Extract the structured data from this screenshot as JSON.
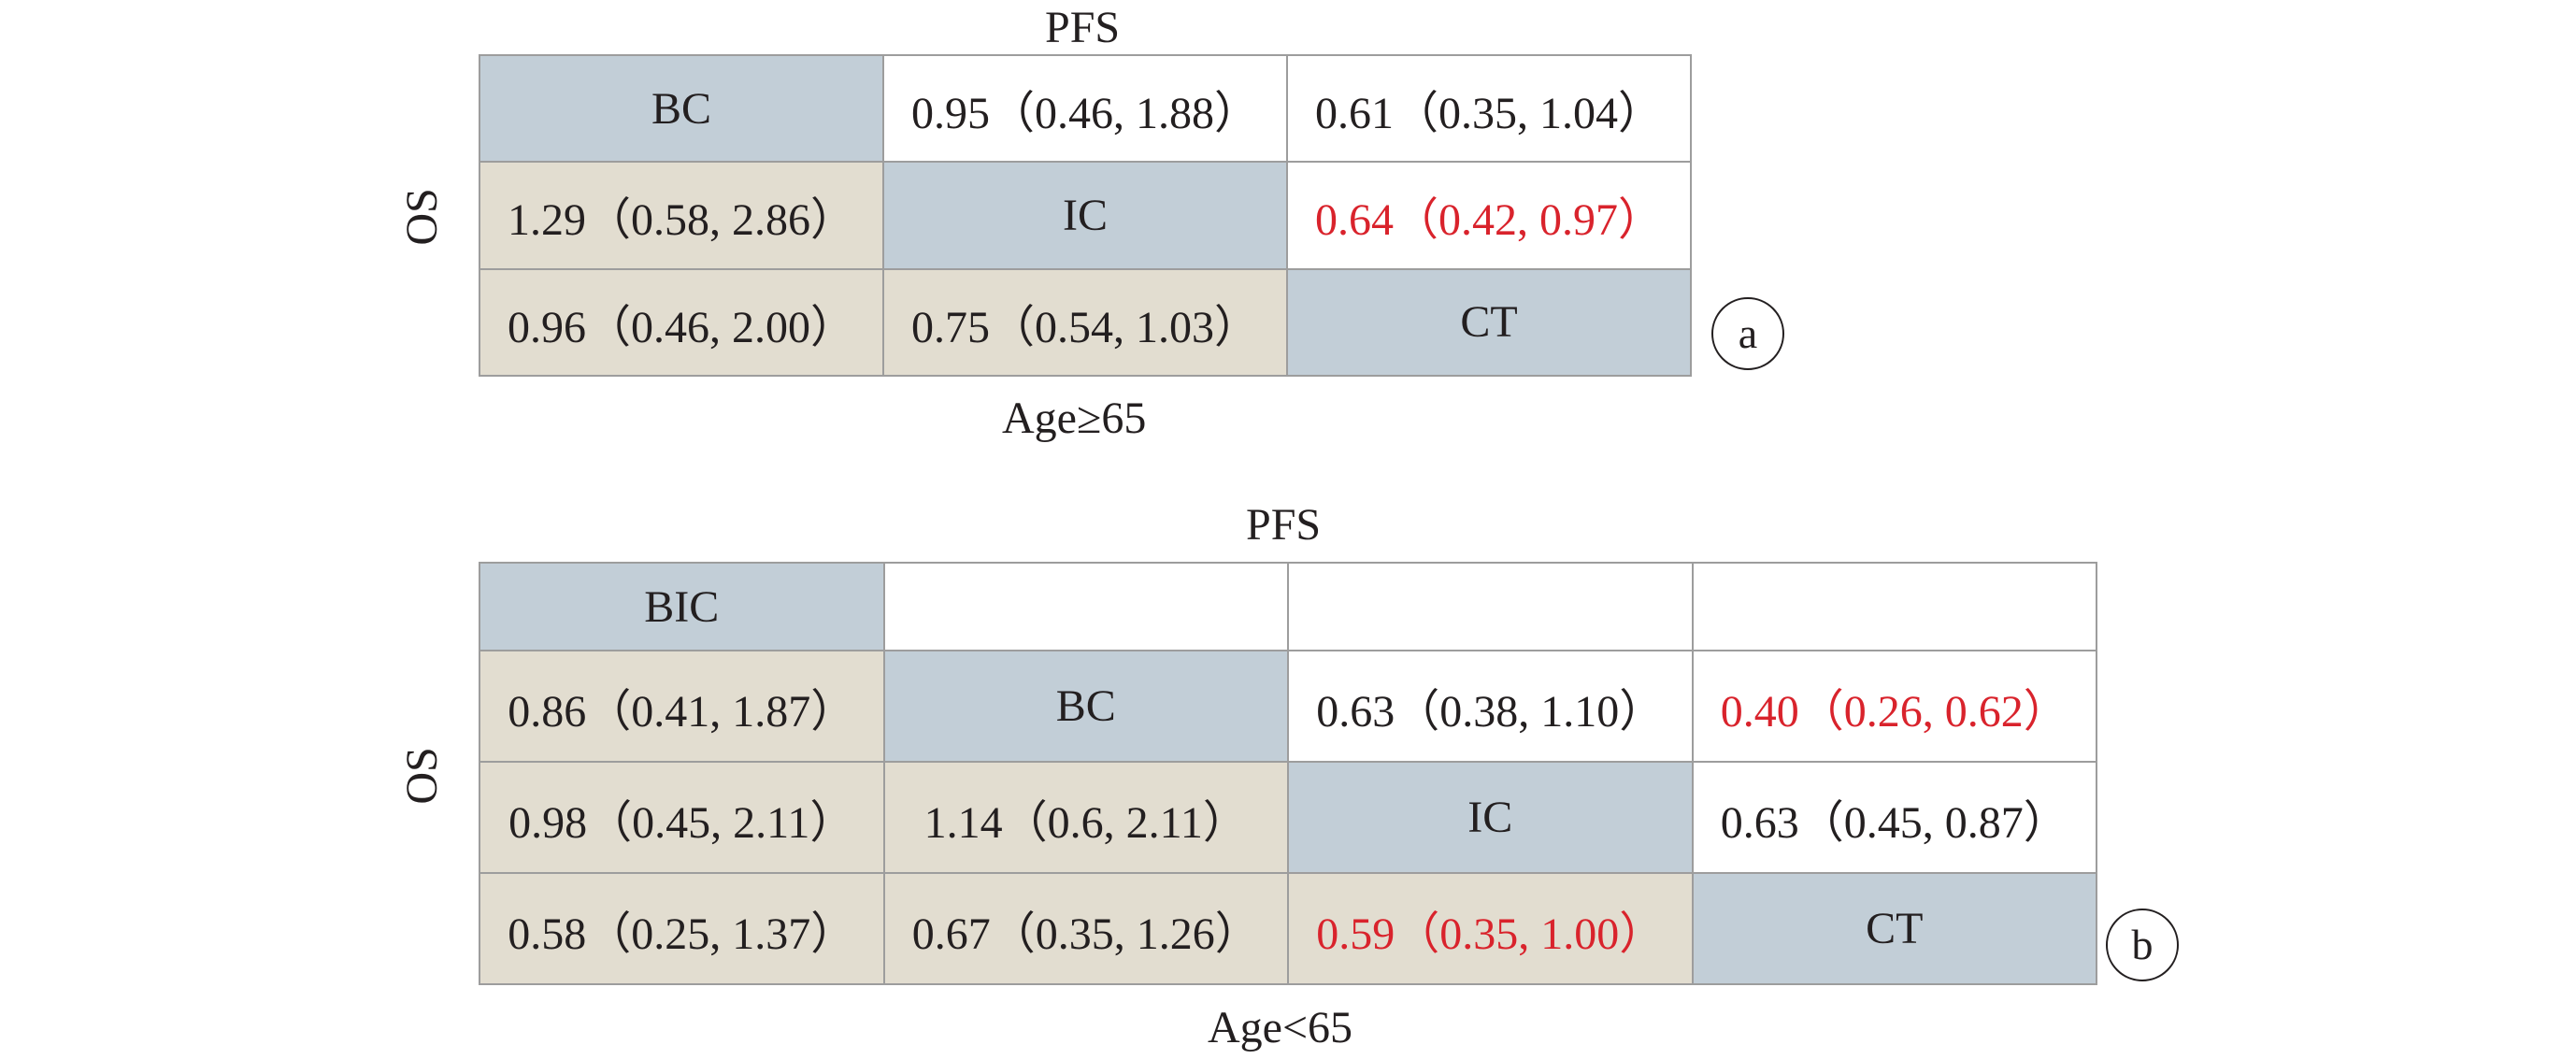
{
  "panel_a": {
    "top_label": "PFS",
    "side_label": "OS",
    "bottom_label": "Age≥65",
    "badge": "a",
    "rows": [
      [
        {
          "t": "BC",
          "k": "diag"
        },
        {
          "t": "0.95（0.46, 1.88）",
          "k": "upper"
        },
        {
          "t": "0.61（0.35, 1.04）",
          "k": "upper"
        }
      ],
      [
        {
          "t": "1.29（0.58, 2.86）",
          "k": "lower"
        },
        {
          "t": "IC",
          "k": "diag"
        },
        {
          "t": "0.64（0.42, 0.97）",
          "k": "upper",
          "sig": true
        }
      ],
      [
        {
          "t": "0.96（0.46, 2.00）",
          "k": "lower"
        },
        {
          "t": "0.75（0.54, 1.03）",
          "k": "lower"
        },
        {
          "t": "CT",
          "k": "diag"
        }
      ]
    ]
  },
  "panel_b": {
    "top_label": "PFS",
    "side_label": "OS",
    "bottom_label": "Age<65",
    "badge": "b",
    "rows": [
      [
        {
          "t": "BIC",
          "k": "diag"
        },
        {
          "t": "",
          "k": "upper"
        },
        {
          "t": "",
          "k": "upper"
        },
        {
          "t": "",
          "k": "upper"
        }
      ],
      [
        {
          "t": "0.86（0.41, 1.87）",
          "k": "lower"
        },
        {
          "t": "BC",
          "k": "diag"
        },
        {
          "t": "0.63（0.38, 1.10）",
          "k": "upper"
        },
        {
          "t": "0.40（0.26, 0.62）",
          "k": "upper",
          "sig": true
        }
      ],
      [
        {
          "t": "0.98（0.45, 2.11）",
          "k": "lower"
        },
        {
          "t": "1.14（0.6, 2.11）",
          "k": "lower"
        },
        {
          "t": "IC",
          "k": "diag"
        },
        {
          "t": "0.63（0.45, 0.87）",
          "k": "upper"
        }
      ],
      [
        {
          "t": "0.58（0.25, 1.37）",
          "k": "lower"
        },
        {
          "t": "0.67（0.35, 1.26）",
          "k": "lower"
        },
        {
          "t": "0.59（0.35, 1.00）",
          "k": "lower",
          "sig": true
        },
        {
          "t": "CT",
          "k": "diag"
        }
      ]
    ]
  },
  "colors": {
    "diagonal": "#c2ced7",
    "lower": "#e2ddd0",
    "upper": "#ffffff",
    "significant_text": "#d9232c",
    "border": "#9d9d9d"
  }
}
